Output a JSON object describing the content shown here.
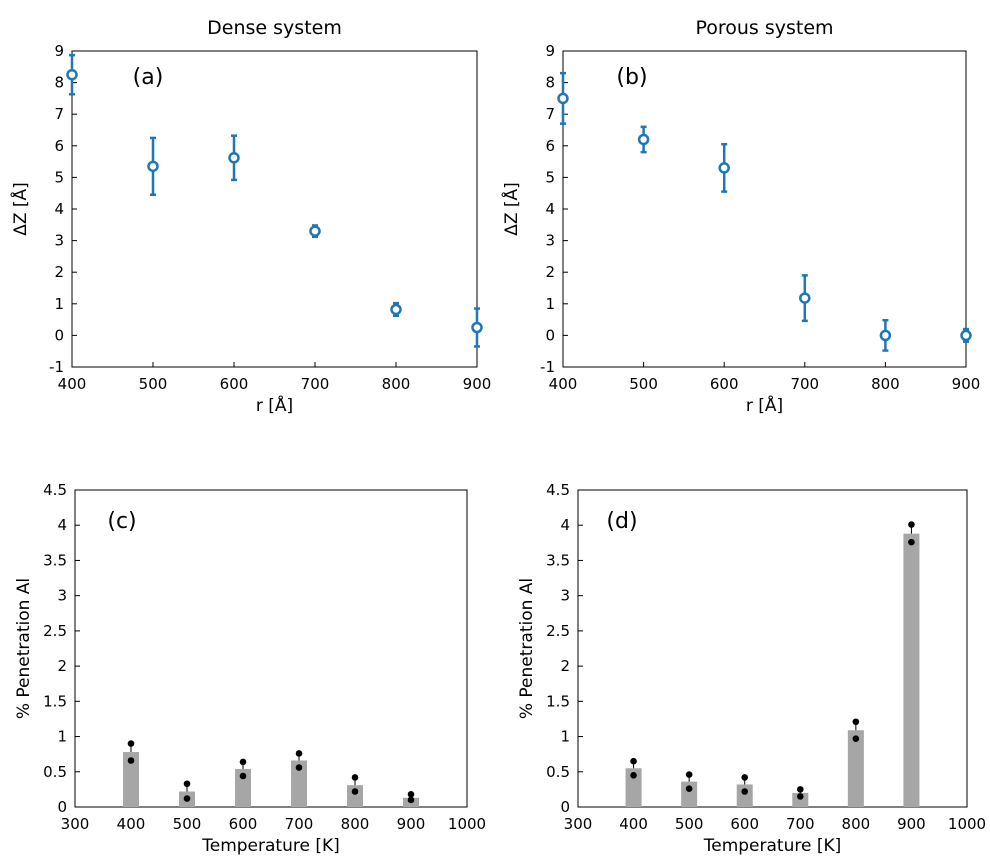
{
  "chart_data": [
    {
      "id": "a",
      "type": "scatter",
      "title": "Dense system",
      "panel_label": "(a)",
      "xlabel": "r [Å]",
      "ylabel": "ΔZ [Å]",
      "xlim": [
        400,
        900
      ],
      "ylim": [
        -1,
        9
      ],
      "xticks": [
        "400",
        "500",
        "600",
        "700",
        "800",
        "900"
      ],
      "yticks": [
        "-1",
        "0",
        "1",
        "2",
        "3",
        "4",
        "5",
        "6",
        "7",
        "8",
        "9"
      ],
      "color": "#1f77b4",
      "points": [
        {
          "x": 400,
          "y": 8.25,
          "err": 0.62
        },
        {
          "x": 500,
          "y": 5.35,
          "err": 0.9
        },
        {
          "x": 600,
          "y": 5.62,
          "err": 0.7
        },
        {
          "x": 700,
          "y": 3.3,
          "err": 0.18
        },
        {
          "x": 800,
          "y": 0.82,
          "err": 0.2
        },
        {
          "x": 900,
          "y": 0.25,
          "err": 0.6
        }
      ]
    },
    {
      "id": "b",
      "type": "scatter",
      "title": "Porous system",
      "panel_label": "(b)",
      "xlabel": "r [Å]",
      "ylabel": "ΔZ [Å]",
      "xlim": [
        400,
        900
      ],
      "ylim": [
        -1,
        9
      ],
      "xticks": [
        "400",
        "500",
        "600",
        "700",
        "800",
        "900"
      ],
      "yticks": [
        "-1",
        "0",
        "1",
        "2",
        "3",
        "4",
        "5",
        "6",
        "7",
        "8",
        "9"
      ],
      "color": "#1f77b4",
      "points": [
        {
          "x": 400,
          "y": 7.5,
          "err": 0.8
        },
        {
          "x": 500,
          "y": 6.2,
          "err": 0.4
        },
        {
          "x": 600,
          "y": 5.3,
          "err": 0.75
        },
        {
          "x": 700,
          "y": 1.18,
          "err": 0.72
        },
        {
          "x": 800,
          "y": 0.0,
          "err": 0.48
        },
        {
          "x": 900,
          "y": 0.0,
          "err": 0.2
        }
      ]
    },
    {
      "id": "c",
      "type": "bar",
      "title": "",
      "panel_label": "(c)",
      "xlabel": "Temperature [K]",
      "ylabel": "% Penetration Al",
      "xlim": [
        300,
        1000
      ],
      "ylim": [
        0,
        4.5
      ],
      "xticks": [
        "300",
        "400",
        "500",
        "600",
        "700",
        "800",
        "900",
        "1000"
      ],
      "yticks": [
        "0",
        "0.5",
        "1",
        "1.5",
        "2",
        "2.5",
        "3",
        "3.5",
        "4",
        "4.5"
      ],
      "bar_color": "#a6a6a6",
      "bars": [
        {
          "x": 400,
          "value": 0.78,
          "err": 0.1,
          "dots": [
            0.9,
            0.66
          ]
        },
        {
          "x": 500,
          "value": 0.22,
          "err": 0.1,
          "dots": [
            0.33,
            0.12
          ]
        },
        {
          "x": 600,
          "value": 0.54,
          "err": 0.1,
          "dots": [
            0.64,
            0.44
          ]
        },
        {
          "x": 700,
          "value": 0.66,
          "err": 0.1,
          "dots": [
            0.76,
            0.56
          ]
        },
        {
          "x": 800,
          "value": 0.31,
          "err": 0.1,
          "dots": [
            0.42,
            0.22
          ]
        },
        {
          "x": 900,
          "value": 0.13,
          "err": 0.05,
          "dots": [
            0.18,
            0.1
          ]
        }
      ]
    },
    {
      "id": "d",
      "type": "bar",
      "title": "",
      "panel_label": "(d)",
      "xlabel": "Temperature [K]",
      "ylabel": "% Penetration Al",
      "xlim": [
        300,
        1000
      ],
      "ylim": [
        0,
        4.5
      ],
      "xticks": [
        "300",
        "400",
        "500",
        "600",
        "700",
        "800",
        "900",
        "1000"
      ],
      "yticks": [
        "0",
        "0.5",
        "1",
        "1.5",
        "2",
        "2.5",
        "3",
        "3.5",
        "4",
        "4.5"
      ],
      "bar_color": "#a6a6a6",
      "bars": [
        {
          "x": 400,
          "value": 0.55,
          "err": 0.1,
          "dots": [
            0.65,
            0.45
          ]
        },
        {
          "x": 500,
          "value": 0.36,
          "err": 0.1,
          "dots": [
            0.46,
            0.26
          ]
        },
        {
          "x": 600,
          "value": 0.32,
          "err": 0.1,
          "dots": [
            0.42,
            0.22
          ]
        },
        {
          "x": 700,
          "value": 0.2,
          "err": 0.05,
          "dots": [
            0.25,
            0.15
          ]
        },
        {
          "x": 800,
          "value": 1.09,
          "err": 0.12,
          "dots": [
            1.21,
            0.97
          ]
        },
        {
          "x": 900,
          "value": 3.88,
          "err": 0.13,
          "dots": [
            4.01,
            3.76
          ]
        }
      ]
    }
  ]
}
